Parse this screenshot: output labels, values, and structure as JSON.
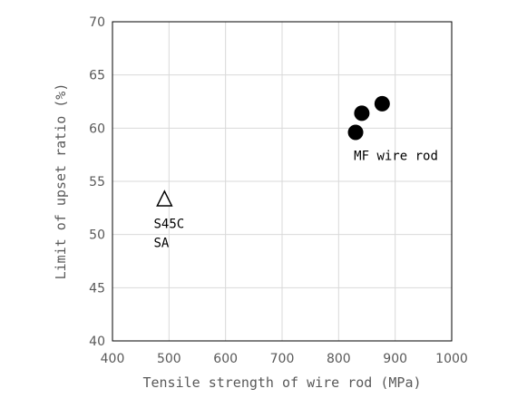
{
  "chart_data": {
    "type": "scatter",
    "xlabel": "Tensile strength of wire rod (MPa)",
    "ylabel": "Limit of upset ratio (%)",
    "xlim": [
      400,
      1000
    ],
    "ylim": [
      40,
      70
    ],
    "xticks": [
      400,
      500,
      600,
      700,
      800,
      900,
      1000
    ],
    "yticks": [
      40,
      45,
      50,
      55,
      60,
      65,
      70
    ],
    "grid": true,
    "series": [
      {
        "marker": "circle-filled",
        "color": "#000000",
        "points": [
          {
            "x": 830,
            "y": 59.6
          },
          {
            "x": 841,
            "y": 61.4
          },
          {
            "x": 877,
            "y": 62.3
          }
        ]
      },
      {
        "marker": "triangle-open",
        "color": "#000000",
        "points": [
          {
            "x": 492,
            "y": 53.3
          }
        ]
      }
    ],
    "annotations": [
      {
        "text": "MF wire rod",
        "x": 827,
        "y": 57.0
      },
      {
        "text": "S45C",
        "x": 473,
        "y": 50.6
      },
      {
        "text": "SA",
        "x": 473,
        "y": 48.8
      }
    ]
  }
}
